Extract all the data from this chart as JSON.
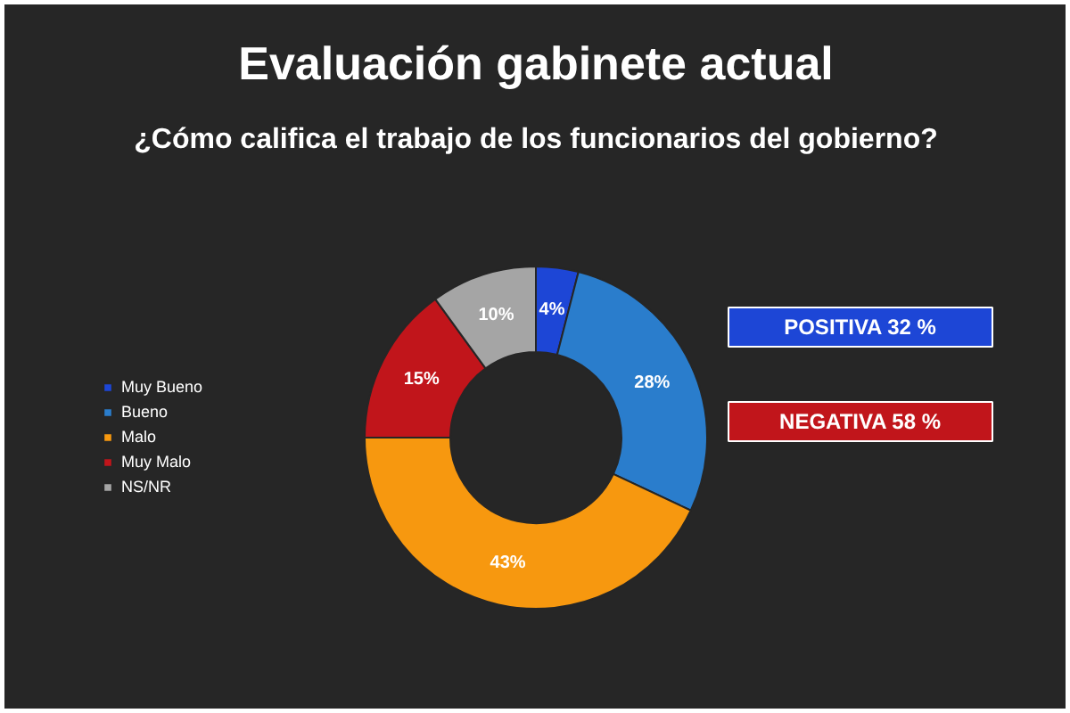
{
  "chart_data": {
    "type": "donut",
    "title": "Evaluación gabinete actual",
    "subtitle": "¿Cómo califica el trabajo de los funcionarios del gobierno?",
    "categories": [
      "Muy Bueno",
      "Bueno",
      "Malo",
      "Muy Malo",
      "NS/NR"
    ],
    "values": [
      4,
      28,
      43,
      15,
      10
    ],
    "colors": [
      "#1d46d6",
      "#2a7dcc",
      "#f7980f",
      "#c1151b",
      "#a5a5a5"
    ],
    "value_labels": [
      "4%",
      "28%",
      "43%",
      "15%",
      "10%"
    ],
    "annotations": [
      "POSITIVA 32 %",
      "NEGATIVA 58 %"
    ],
    "legend": "left"
  }
}
